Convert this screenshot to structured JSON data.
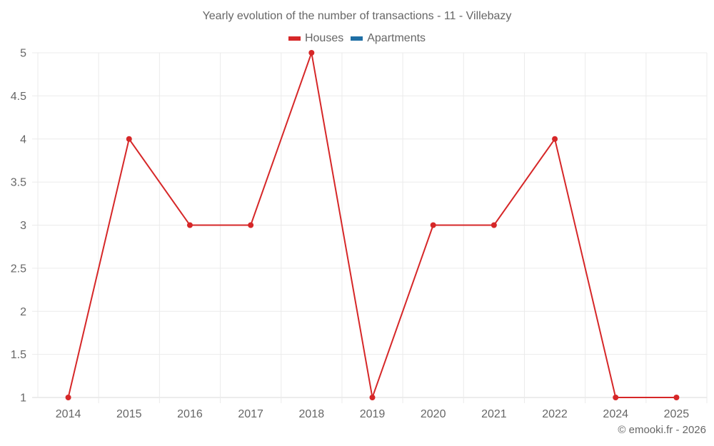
{
  "chart_data": {
    "type": "line",
    "title": "Yearly evolution of the number of transactions - 11 - Villebazy",
    "xlabel": "",
    "ylabel": "",
    "categories": [
      "2014",
      "2015",
      "2016",
      "2017",
      "2018",
      "2019",
      "2020",
      "2021",
      "2022",
      "2024",
      "2025"
    ],
    "series": [
      {
        "name": "Houses",
        "color": "#d62728",
        "values": [
          1,
          4,
          3,
          3,
          5,
          1,
          3,
          3,
          4,
          1,
          1
        ]
      },
      {
        "name": "Apartments",
        "color": "#1f6fa5",
        "values": []
      }
    ],
    "ylim": [
      1,
      5
    ],
    "yticks": [
      1,
      1.5,
      2,
      2.5,
      3,
      3.5,
      4,
      4.5,
      5
    ],
    "grid": true,
    "legend_position": "top"
  },
  "legend": [
    {
      "label": "Houses",
      "color": "#d62728"
    },
    {
      "label": "Apartments",
      "color": "#1f6fa5"
    }
  ],
  "credit": "© emooki.fr - 2026"
}
